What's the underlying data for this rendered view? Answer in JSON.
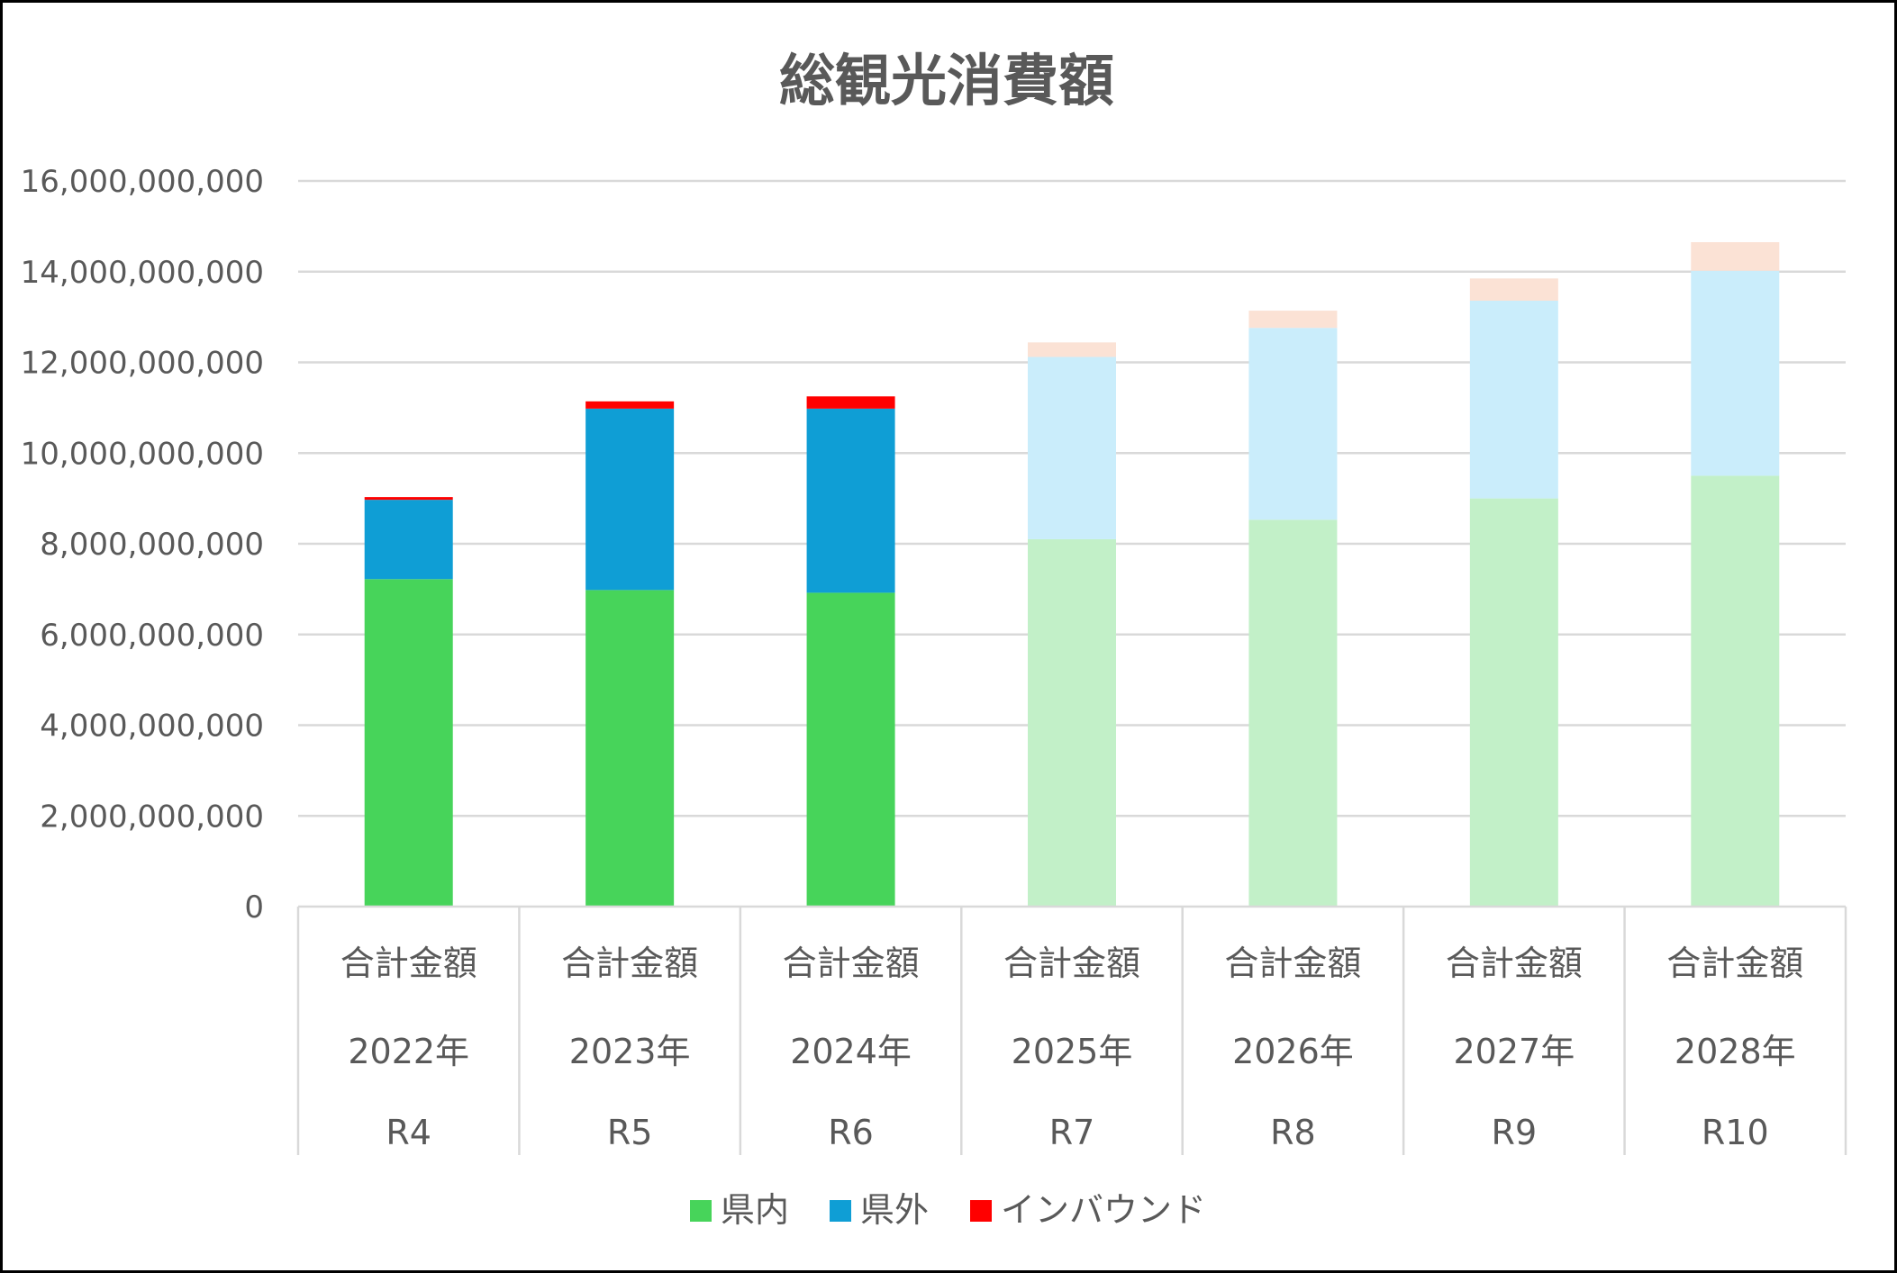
{
  "chart_data": {
    "type": "bar",
    "stacked": true,
    "title": "総観光消費額",
    "xlabel": "",
    "ylabel": "",
    "ylim": [
      0,
      16000000000
    ],
    "yticks": [
      0,
      2000000000,
      4000000000,
      6000000000,
      8000000000,
      10000000000,
      12000000000,
      14000000000,
      16000000000
    ],
    "ytick_labels": [
      "0",
      "2,000,000,000",
      "4,000,000,000",
      "6,000,000,000",
      "8,000,000,000",
      "10,000,000,000",
      "12,000,000,000",
      "14,000,000,000",
      "16,000,000,000"
    ],
    "grid": true,
    "legend_position": "bottom",
    "categories": [
      {
        "line1": "合計金額",
        "line2": "2022年",
        "line3": "R4"
      },
      {
        "line1": "合計金額",
        "line2": "2023年",
        "line3": "R5"
      },
      {
        "line1": "合計金額",
        "line2": "2024年",
        "line3": "R6"
      },
      {
        "line1": "合計金額",
        "line2": "2025年",
        "line3": "R7"
      },
      {
        "line1": "合計金額",
        "line2": "2026年",
        "line3": "R8"
      },
      {
        "line1": "合計金額",
        "line2": "2027年",
        "line3": "R9"
      },
      {
        "line1": "合計金額",
        "line2": "2028年",
        "line3": "R10"
      }
    ],
    "projected_from_index": 3,
    "series": [
      {
        "name": "県内",
        "color": "#47D45A",
        "projected_color": "#C2F0C8",
        "values": [
          7220000000,
          6980000000,
          6920000000,
          8100000000,
          8530000000,
          9000000000,
          9500000000
        ]
      },
      {
        "name": "県外",
        "color": "#0F9ED5",
        "projected_color": "#CAEDFB",
        "values": [
          1750000000,
          4000000000,
          4060000000,
          4020000000,
          4230000000,
          4360000000,
          4520000000
        ]
      },
      {
        "name": "インバウンド",
        "color": "#FF0000",
        "projected_color": "#FBE2D5",
        "values": [
          60000000,
          160000000,
          270000000,
          320000000,
          380000000,
          490000000,
          630000000
        ]
      }
    ]
  }
}
